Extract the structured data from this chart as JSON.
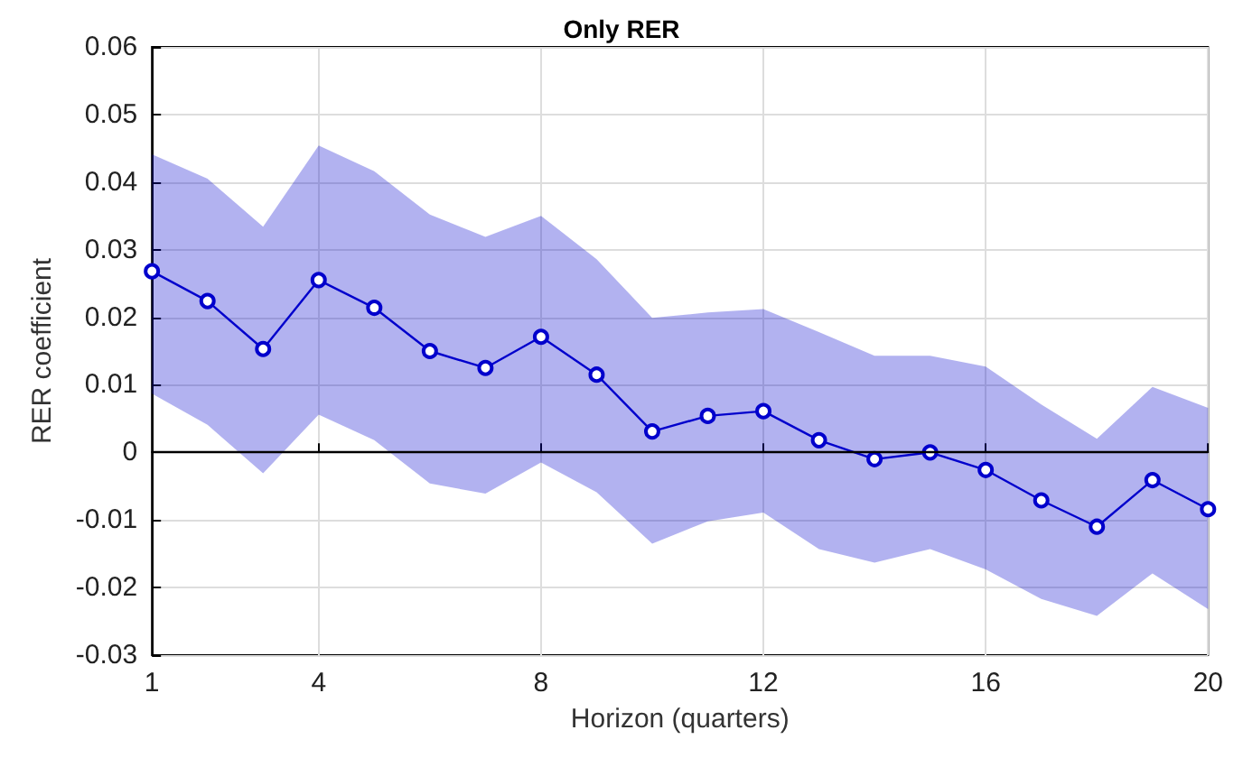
{
  "chart_data": {
    "type": "line",
    "title": "Only RER",
    "xlabel": "Horizon (quarters)",
    "ylabel": "RER coefficient",
    "x": [
      1,
      2,
      3,
      4,
      5,
      6,
      7,
      8,
      9,
      10,
      11,
      12,
      13,
      14,
      15,
      16,
      17,
      18,
      19,
      20
    ],
    "series": [
      {
        "color": "#0000cc",
        "values": [
          0.0268,
          0.0224,
          0.0153,
          0.0255,
          0.0214,
          0.015,
          0.0125,
          0.0171,
          0.0115,
          0.0031,
          0.0054,
          0.0061,
          0.0018,
          -0.001,
          0.0,
          -0.0026,
          -0.0071,
          -0.011,
          -0.0041,
          -0.0084
        ],
        "upper": [
          0.0441,
          0.0405,
          0.0334,
          0.0454,
          0.0416,
          0.0352,
          0.0319,
          0.035,
          0.0286,
          0.0199,
          0.0207,
          0.0212,
          0.0178,
          0.0143,
          0.0143,
          0.0127,
          0.0071,
          0.002,
          0.0097,
          0.0066
        ],
        "lower": [
          0.0087,
          0.0041,
          -0.0031,
          0.0056,
          0.0018,
          -0.0046,
          -0.0061,
          -0.0015,
          -0.0059,
          -0.0135,
          -0.0102,
          -0.0089,
          -0.0143,
          -0.0163,
          -0.0143,
          -0.0173,
          -0.0217,
          -0.0242,
          -0.0179,
          -0.0232
        ]
      }
    ],
    "xlim": [
      1,
      20
    ],
    "xticks": [
      1,
      4,
      8,
      12,
      16,
      20
    ],
    "ylim": [
      -0.03,
      0.06
    ],
    "yticks": [
      -0.03,
      -0.02,
      -0.01,
      0,
      0.01,
      0.02,
      0.03,
      0.04,
      0.05,
      0.06
    ],
    "ref_lines": [
      {
        "axis": "y",
        "value": 0,
        "color": "#000000"
      }
    ],
    "grid": true,
    "marker": "circle",
    "line_style": "solid"
  }
}
